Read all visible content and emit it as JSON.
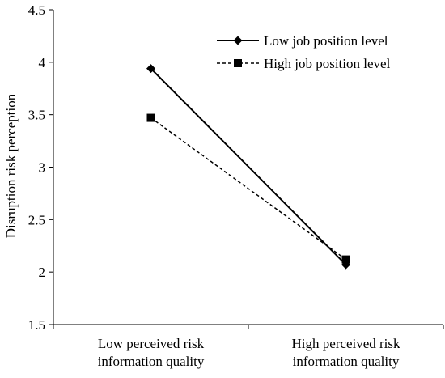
{
  "chart_data": {
    "type": "line",
    "title": "",
    "xlabel": "",
    "ylabel": "Disruption risk perception",
    "ylim": [
      1.5,
      4.5
    ],
    "y_ticks": [
      "1.5",
      "2",
      "2.5",
      "3",
      "3.5",
      "4",
      "4.5"
    ],
    "categories": [
      [
        "Low perceived risk",
        "information quality"
      ],
      [
        "High perceived risk",
        "information quality"
      ]
    ],
    "series": [
      {
        "name": "Low job position level",
        "values": [
          3.94,
          2.07
        ],
        "line_style": "solid",
        "marker": "diamond",
        "color": "#000000"
      },
      {
        "name": "High job position level",
        "values": [
          3.47,
          2.12
        ],
        "line_style": "dashed",
        "marker": "square",
        "color": "#000000"
      }
    ],
    "grid": false,
    "legend_position": "top-right"
  }
}
